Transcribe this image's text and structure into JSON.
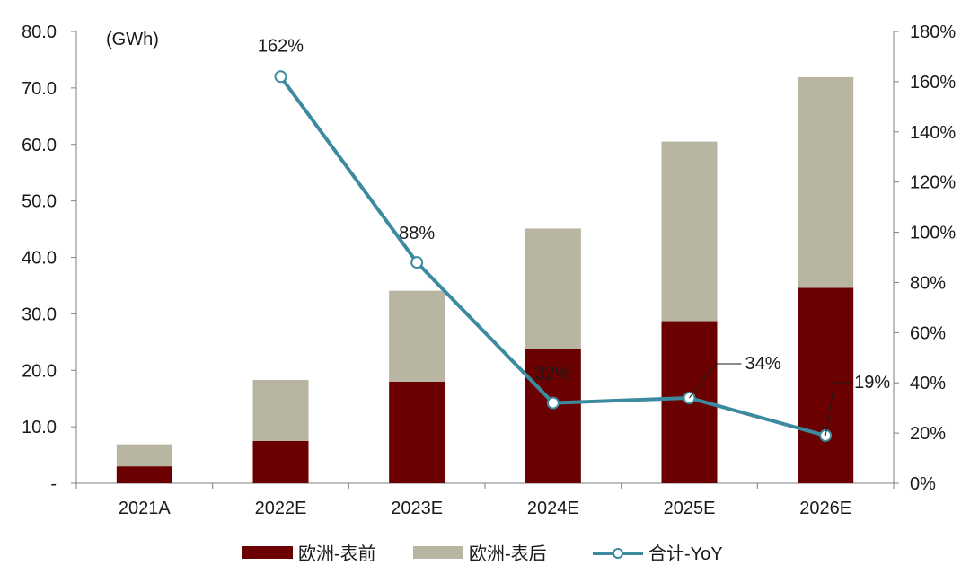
{
  "chart_data": {
    "type": "bar",
    "stacked": true,
    "secondary_type": "line",
    "categories": [
      "2021A",
      "2022E",
      "2023E",
      "2024E",
      "2025E",
      "2026E"
    ],
    "unit_label": "(GWh)",
    "series": [
      {
        "name": "欧洲-表前",
        "type": "bar",
        "axis": "left",
        "color": "#6b0000",
        "values": [
          3.0,
          7.5,
          18.0,
          23.7,
          28.7,
          34.6
        ]
      },
      {
        "name": "欧洲-表后",
        "type": "bar",
        "axis": "left",
        "color": "#b8b6a3",
        "values": [
          3.9,
          10.8,
          16.1,
          21.4,
          31.8,
          37.3
        ]
      },
      {
        "name": "合计-YoY",
        "type": "line",
        "axis": "right",
        "color": "#3c8aa0",
        "values": [
          null,
          162,
          88,
          32,
          34,
          19
        ]
      }
    ],
    "data_labels": [
      "",
      "162%",
      "88%",
      "32%",
      "34%",
      "19%"
    ],
    "ylim_left": [
      0,
      80
    ],
    "yticks_left": [
      "-",
      "10.0",
      "20.0",
      "30.0",
      "40.0",
      "50.0",
      "60.0",
      "70.0",
      "80.0"
    ],
    "ylim_right": [
      0,
      180
    ],
    "yticks_right": [
      "0%",
      "20%",
      "40%",
      "60%",
      "80%",
      "100%",
      "120%",
      "140%",
      "160%",
      "180%"
    ],
    "grid": false,
    "legend_position": "bottom"
  }
}
